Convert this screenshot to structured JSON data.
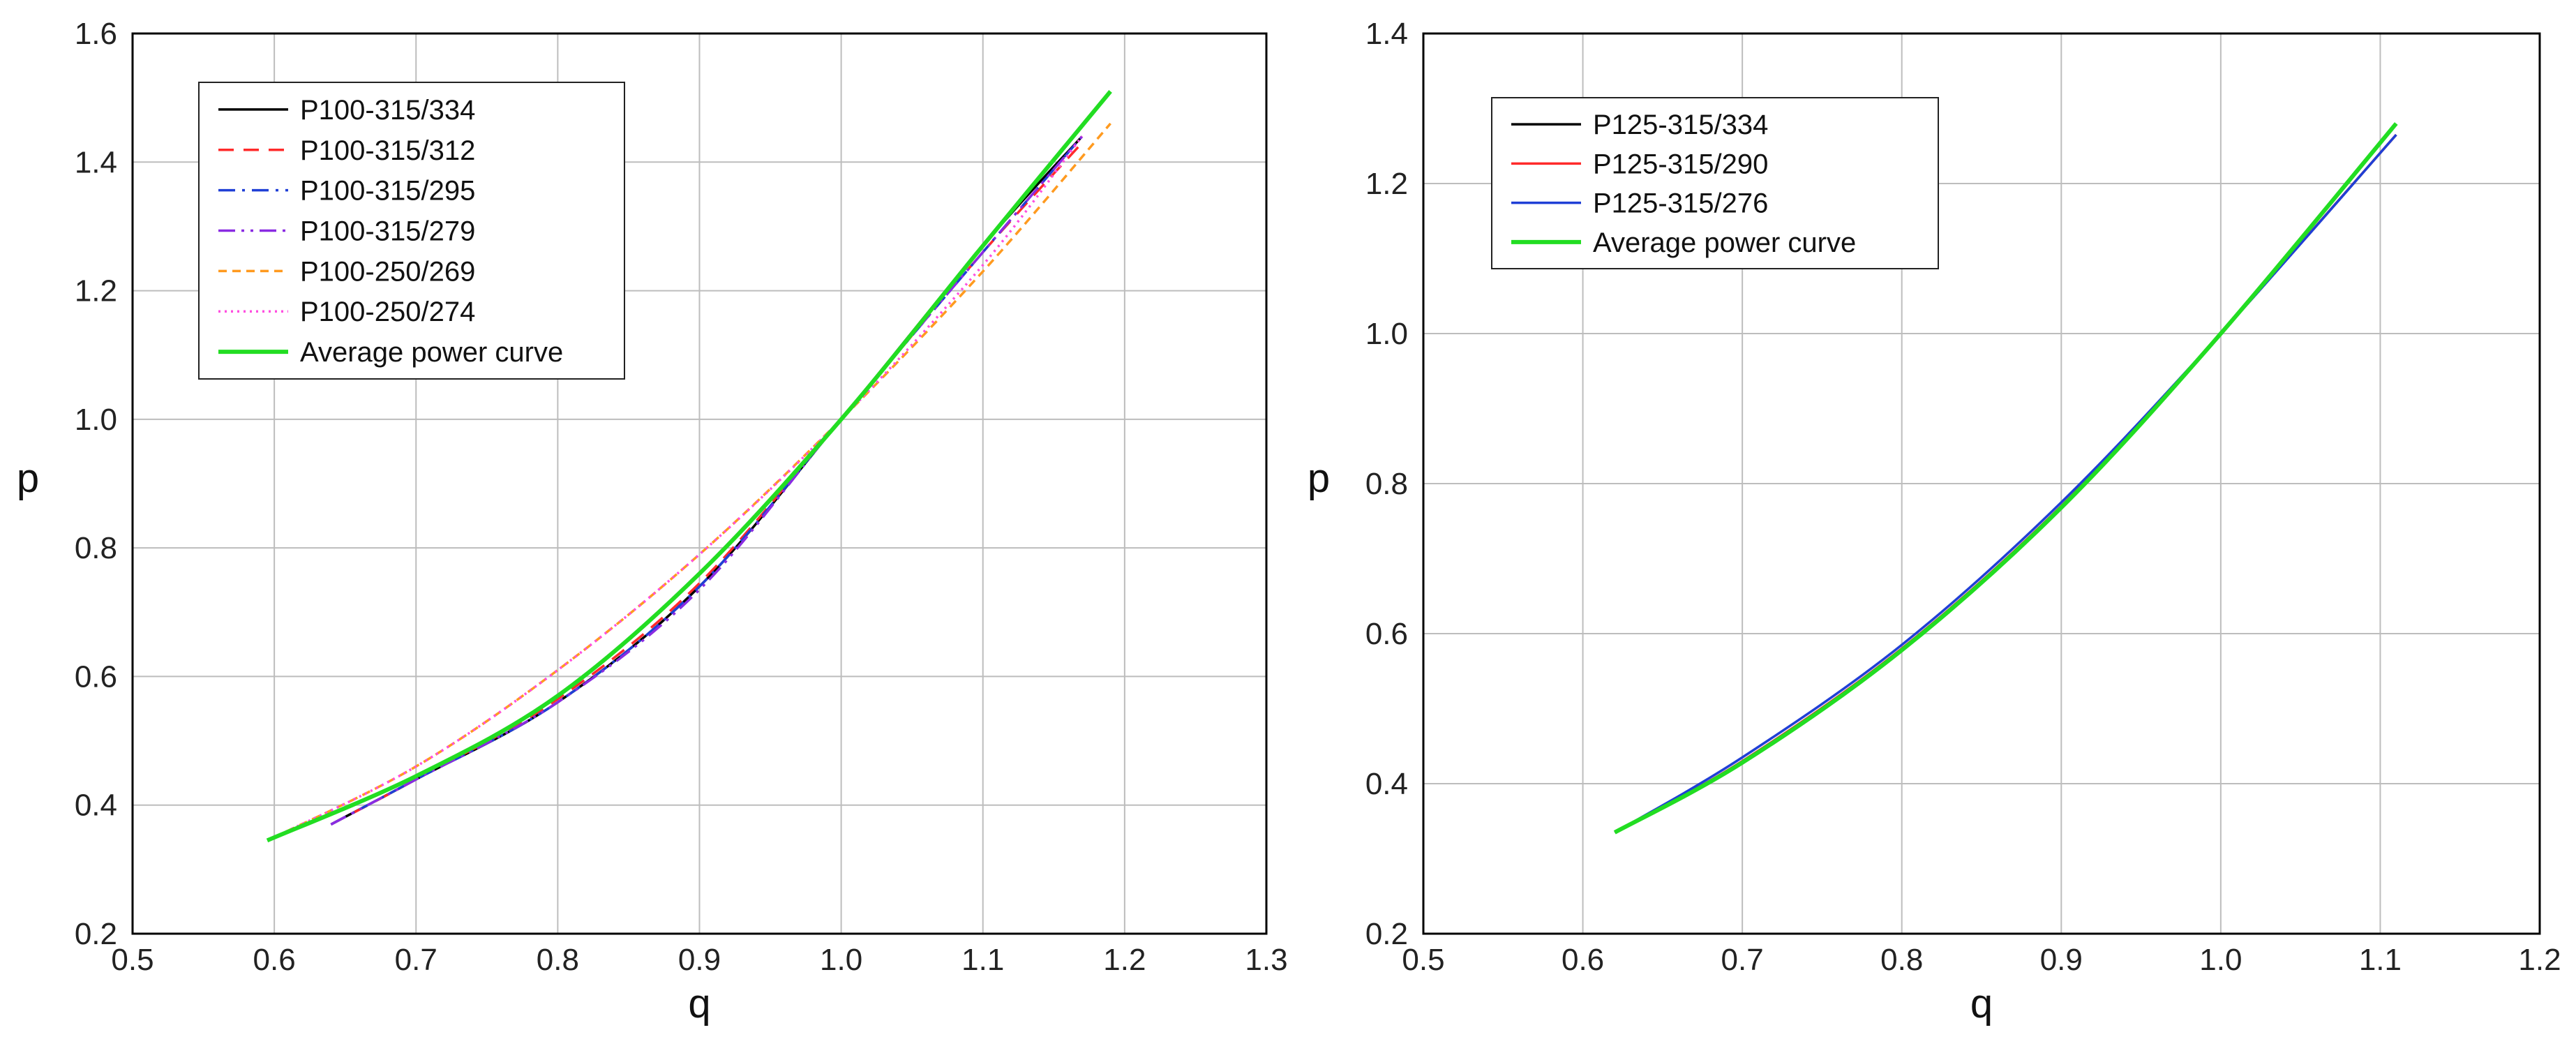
{
  "chart_data": [
    {
      "type": "line",
      "xlabel": "q",
      "ylabel": "p",
      "xlim": [
        0.5,
        1.3
      ],
      "ylim": [
        0.2,
        1.6
      ],
      "xticks": [
        "0.5",
        "0.6",
        "0.7",
        "0.8",
        "0.9",
        "1.0",
        "1.1",
        "1.2",
        "1.3"
      ],
      "yticks": [
        "0.2",
        "0.4",
        "0.6",
        "0.8",
        "1.0",
        "1.2",
        "1.4",
        "1.6"
      ],
      "grid": true,
      "legend_position": "top-left",
      "series": [
        {
          "name": "P100-315/334",
          "color": "#000000",
          "dash": "solid",
          "x": [
            0.64,
            0.7,
            0.8,
            0.9,
            1.0,
            1.1,
            1.17
          ],
          "y": [
            0.37,
            0.44,
            0.56,
            0.74,
            1.0,
            1.27,
            1.44
          ]
        },
        {
          "name": "P100-315/312",
          "color": "#ff2a2a",
          "dash": "dash",
          "x": [
            0.64,
            0.7,
            0.8,
            0.9,
            1.0,
            1.1,
            1.17
          ],
          "y": [
            0.37,
            0.44,
            0.565,
            0.745,
            1.0,
            1.26,
            1.43
          ]
        },
        {
          "name": "P100-315/295",
          "color": "#1f3fd6",
          "dash": "dashdot",
          "x": [
            0.64,
            0.7,
            0.8,
            0.9,
            1.0,
            1.1,
            1.17
          ],
          "y": [
            0.37,
            0.44,
            0.56,
            0.74,
            1.0,
            1.26,
            1.44
          ]
        },
        {
          "name": "P100-315/279",
          "color": "#8a2be2",
          "dash": "dashdotdot",
          "x": [
            0.64,
            0.7,
            0.8,
            0.9,
            1.0,
            1.1,
            1.17
          ],
          "y": [
            0.37,
            0.44,
            0.56,
            0.735,
            1.0,
            1.26,
            1.44
          ]
        },
        {
          "name": "P100-250/269",
          "color": "#ff9a1f",
          "dash": "short-dash",
          "x": [
            0.6,
            0.7,
            0.8,
            0.9,
            1.0,
            1.1,
            1.19
          ],
          "y": [
            0.35,
            0.46,
            0.61,
            0.79,
            1.0,
            1.23,
            1.46
          ]
        },
        {
          "name": "P100-250/274",
          "color": "#ff4fe0",
          "dash": "dot",
          "x": [
            0.6,
            0.7,
            0.8,
            0.9,
            1.0,
            1.1,
            1.17
          ],
          "y": [
            0.35,
            0.46,
            0.61,
            0.79,
            1.0,
            1.24,
            1.44
          ]
        },
        {
          "name": "Average power curve",
          "color": "#22dd22",
          "dash": "solid",
          "width": "thick",
          "x": [
            0.595,
            0.7,
            0.8,
            0.9,
            1.0,
            1.1,
            1.19
          ],
          "y": [
            0.345,
            0.445,
            0.57,
            0.76,
            1.0,
            1.27,
            1.51
          ]
        }
      ]
    },
    {
      "type": "line",
      "xlabel": "q",
      "ylabel": "p",
      "xlim": [
        0.5,
        1.2
      ],
      "ylim": [
        0.2,
        1.4
      ],
      "xticks": [
        "0.5",
        "0.6",
        "0.7",
        "0.8",
        "0.9",
        "1.0",
        "1.1",
        "1.2"
      ],
      "yticks": [
        "0.2",
        "0.4",
        "0.6",
        "0.8",
        "1.0",
        "1.2",
        "1.4"
      ],
      "grid": true,
      "legend_position": "top-left",
      "series": [
        {
          "name": "P125-315/334",
          "color": "#000000",
          "dash": "solid",
          "x": [
            0.62,
            0.7,
            0.8,
            0.9,
            1.0,
            1.11
          ],
          "y": [
            0.335,
            0.43,
            0.58,
            0.77,
            1.0,
            1.265
          ]
        },
        {
          "name": "P125-315/290",
          "color": "#ff2a2a",
          "dash": "solid",
          "x": [
            0.62,
            0.7,
            0.8,
            0.9,
            1.0,
            1.11
          ],
          "y": [
            0.335,
            0.43,
            0.58,
            0.77,
            1.0,
            1.265
          ]
        },
        {
          "name": "P125-315/276",
          "color": "#1f3fd6",
          "dash": "solid",
          "x": [
            0.62,
            0.7,
            0.8,
            0.9,
            1.0,
            1.11
          ],
          "y": [
            0.335,
            0.435,
            0.585,
            0.775,
            1.0,
            1.265
          ]
        },
        {
          "name": "Average power curve",
          "color": "#22dd22",
          "dash": "solid",
          "width": "thick",
          "x": [
            0.62,
            0.7,
            0.8,
            0.9,
            1.0,
            1.11
          ],
          "y": [
            0.335,
            0.428,
            0.578,
            0.768,
            1.0,
            1.28
          ]
        }
      ]
    }
  ]
}
